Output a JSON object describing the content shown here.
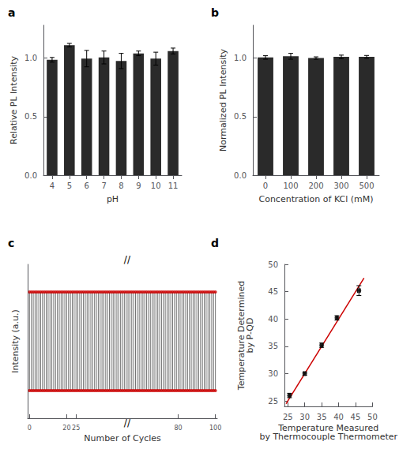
{
  "chart_data": [
    {
      "type": "bar",
      "title": "a",
      "categories": [
        "4",
        "5",
        "6",
        "7",
        "8",
        "9",
        "10",
        "11"
      ],
      "values": [
        0.985,
        1.11,
        0.995,
        1.005,
        0.975,
        1.04,
        0.995,
        1.06
      ],
      "errors": [
        0.02,
        0.015,
        0.07,
        0.055,
        0.065,
        0.02,
        0.055,
        0.025
      ],
      "color": "#2a2a2a",
      "xlabel": "pH",
      "ylabel": "Relative PL Intensity",
      "ylim": [
        0.0,
        1.28
      ],
      "yticks": [
        {
          "value": 0.0,
          "label": "0.0"
        },
        {
          "value": 0.5,
          "label": "0.5"
        },
        {
          "value": 1.0,
          "label": "1.0"
        }
      ],
      "grid": false
    },
    {
      "type": "bar",
      "title": "b",
      "categories": [
        "0",
        "100",
        "200",
        "300",
        "500"
      ],
      "values": [
        1.005,
        1.015,
        1.0,
        1.01,
        1.01
      ],
      "errors": [
        0.015,
        0.025,
        0.01,
        0.015,
        0.012
      ],
      "color": "#2a2a2a",
      "xlabel": "Concentration of KCl (mM)",
      "ylabel": "Normalized PL Intensity",
      "ylim": [
        0.0,
        1.28
      ],
      "yticks": [
        {
          "value": 0.0,
          "label": "0.0"
        },
        {
          "value": 0.5,
          "label": "0.5"
        },
        {
          "value": 1.0,
          "label": "1.0"
        }
      ],
      "grid": false
    },
    {
      "type": "cycles",
      "title": "c",
      "x": [
        0,
        1,
        2,
        3,
        4,
        5,
        6,
        7,
        8,
        9,
        10,
        11,
        12,
        13,
        14,
        15,
        16,
        17,
        18,
        19,
        20,
        21,
        22,
        23,
        24,
        25,
        26,
        27,
        28,
        29,
        30,
        31,
        32,
        33,
        34,
        35,
        36,
        37,
        38,
        39,
        40,
        41,
        42,
        43,
        44,
        45,
        46,
        47,
        48,
        49,
        50,
        51,
        52,
        53,
        54,
        55,
        56,
        57,
        58,
        59,
        60,
        61,
        62,
        63,
        64,
        65,
        66,
        67,
        68,
        69,
        70,
        71,
        72,
        73,
        74,
        75,
        76,
        77,
        78,
        79,
        80,
        81,
        82,
        83,
        84,
        85,
        86,
        87,
        88,
        89,
        90,
        91,
        92,
        93,
        94,
        95,
        96,
        97,
        98,
        99,
        100
      ],
      "series": [
        {
          "type": "vlines",
          "color": "#111111",
          "low": [
            0.18,
            0.18,
            0.18,
            0.18,
            0.18,
            0.18,
            0.18,
            0.18,
            0.18,
            0.18,
            0.18,
            0.18,
            0.18,
            0.18,
            0.18,
            0.18,
            0.18,
            0.18,
            0.18,
            0.18,
            0.18,
            0.18,
            0.18,
            0.18,
            0.18,
            0.18,
            0.18,
            0.18,
            0.18,
            0.18,
            0.18,
            0.18,
            0.18,
            0.18,
            0.18,
            0.18,
            0.18,
            0.18,
            0.18,
            0.18,
            0.18,
            0.18,
            0.18,
            0.18,
            0.18,
            0.18,
            0.18,
            0.18,
            0.18,
            0.18,
            0.18,
            0.18,
            0.18,
            0.18,
            0.18,
            0.18,
            0.18,
            0.18,
            0.18,
            0.18,
            0.18,
            0.18,
            0.18,
            0.18,
            0.18,
            0.18,
            0.18,
            0.18,
            0.18,
            0.18,
            0.18,
            0.18,
            0.18,
            0.18,
            0.18,
            0.18,
            0.18,
            0.18,
            0.18,
            0.18,
            0.18,
            0.18,
            0.18,
            0.18,
            0.18,
            0.18,
            0.18,
            0.18,
            0.18,
            0.18,
            0.18,
            0.18,
            0.18,
            0.18,
            0.18,
            0.18,
            0.18,
            0.18,
            0.18,
            0.18,
            0.18
          ],
          "high": [
            0.82,
            0.82,
            0.82,
            0.82,
            0.82,
            0.82,
            0.82,
            0.82,
            0.82,
            0.82,
            0.82,
            0.82,
            0.82,
            0.82,
            0.82,
            0.82,
            0.82,
            0.82,
            0.82,
            0.82,
            0.82,
            0.82,
            0.82,
            0.82,
            0.82,
            0.82,
            0.82,
            0.82,
            0.82,
            0.82,
            0.82,
            0.82,
            0.82,
            0.82,
            0.82,
            0.82,
            0.82,
            0.82,
            0.82,
            0.82,
            0.82,
            0.82,
            0.82,
            0.82,
            0.82,
            0.82,
            0.82,
            0.82,
            0.82,
            0.82,
            0.82,
            0.82,
            0.82,
            0.82,
            0.82,
            0.82,
            0.82,
            0.82,
            0.82,
            0.82,
            0.82,
            0.82,
            0.82,
            0.82,
            0.82,
            0.82,
            0.82,
            0.82,
            0.82,
            0.82,
            0.82,
            0.82,
            0.82,
            0.82,
            0.82,
            0.82,
            0.82,
            0.82,
            0.82,
            0.82,
            0.82,
            0.82,
            0.82,
            0.82,
            0.82,
            0.82,
            0.82,
            0.82,
            0.82,
            0.82,
            0.82,
            0.82,
            0.82,
            0.82,
            0.82,
            0.82,
            0.82,
            0.82,
            0.82,
            0.82,
            0.82
          ]
        },
        {
          "type": "scatter",
          "color": "#cc0000",
          "values": [
            0.82,
            0.82,
            0.82,
            0.82,
            0.82,
            0.82,
            0.82,
            0.82,
            0.82,
            0.82,
            0.82,
            0.82,
            0.82,
            0.82,
            0.82,
            0.82,
            0.82,
            0.82,
            0.82,
            0.82,
            0.82,
            0.82,
            0.82,
            0.82,
            0.82,
            0.82,
            0.82,
            0.82,
            0.82,
            0.82,
            0.82,
            0.82,
            0.82,
            0.82,
            0.82,
            0.82,
            0.82,
            0.82,
            0.82,
            0.82,
            0.82,
            0.82,
            0.82,
            0.82,
            0.82,
            0.82,
            0.82,
            0.82,
            0.82,
            0.82,
            0.82,
            0.82,
            0.82,
            0.82,
            0.82,
            0.82,
            0.82,
            0.82,
            0.82,
            0.82,
            0.82,
            0.82,
            0.82,
            0.82,
            0.82,
            0.82,
            0.82,
            0.82,
            0.82,
            0.82,
            0.82,
            0.82,
            0.82,
            0.82,
            0.82,
            0.82,
            0.82,
            0.82,
            0.82,
            0.82,
            0.82,
            0.82,
            0.82,
            0.82,
            0.82,
            0.82,
            0.82,
            0.82,
            0.82,
            0.82,
            0.82,
            0.82,
            0.82,
            0.82,
            0.82,
            0.82,
            0.82,
            0.82,
            0.82,
            0.82,
            0.82
          ]
        },
        {
          "type": "scatter",
          "color": "#cc0000",
          "values": [
            0.18,
            0.18,
            0.18,
            0.18,
            0.18,
            0.18,
            0.18,
            0.18,
            0.18,
            0.18,
            0.18,
            0.18,
            0.18,
            0.18,
            0.18,
            0.18,
            0.18,
            0.18,
            0.18,
            0.18,
            0.18,
            0.18,
            0.18,
            0.18,
            0.18,
            0.18,
            0.18,
            0.18,
            0.18,
            0.18,
            0.18,
            0.18,
            0.18,
            0.18,
            0.18,
            0.18,
            0.18,
            0.18,
            0.18,
            0.18,
            0.18,
            0.18,
            0.18,
            0.18,
            0.18,
            0.18,
            0.18,
            0.18,
            0.18,
            0.18,
            0.18,
            0.18,
            0.18,
            0.18,
            0.18,
            0.18,
            0.18,
            0.18,
            0.18,
            0.18,
            0.18,
            0.18,
            0.18,
            0.18,
            0.18,
            0.18,
            0.18,
            0.18,
            0.18,
            0.18,
            0.18,
            0.18,
            0.18,
            0.18,
            0.18,
            0.18,
            0.18,
            0.18,
            0.18,
            0.18,
            0.18,
            0.18,
            0.18,
            0.18,
            0.18,
            0.18,
            0.18,
            0.18,
            0.18,
            0.18,
            0.18,
            0.18,
            0.18,
            0.18,
            0.18,
            0.18,
            0.18,
            0.18,
            0.18,
            0.18,
            0.18
          ]
        }
      ],
      "xlabel": "Number of Cycles",
      "ylabel": "Intensity (a.u.)",
      "xlim": [
        -1,
        101
      ],
      "xticks": [
        0,
        20,
        25,
        80,
        100
      ],
      "ylim": [
        0,
        1
      ],
      "yticks": [],
      "tick_labels": "x",
      "annotations": [
        {
          "text": "//",
          "x": 52.5,
          "y": 1
        },
        {
          "text": "//",
          "x": 52.5,
          "y": 0
        }
      ],
      "grid": false
    },
    {
      "type": "scatter",
      "title": "d",
      "series": [
        {
          "type": "line",
          "color": "#cc0000",
          "x": [
            24.5,
            47.5
          ],
          "values": [
            24.5,
            47.5
          ]
        },
        {
          "type": "scatter",
          "color": "#111111",
          "x": [
            25.5,
            30.0,
            35.0,
            39.5,
            46.0
          ],
          "values": [
            26.0,
            30.0,
            35.2,
            40.2,
            45.2
          ],
          "errors_x": [
            0.3,
            0.3,
            0.3,
            0.3,
            0.4
          ],
          "errors_y": [
            0.4,
            0.3,
            0.4,
            0.4,
            0.9
          ]
        }
      ],
      "xlabel": "Temperature Measured\nby Thermocouple Thermometer",
      "ylabel": "Temperature Determined\nby P-QD",
      "xlim": [
        24,
        50
      ],
      "xticks": [
        25,
        30,
        35,
        40,
        45,
        50
      ],
      "ylim": [
        24,
        50
      ],
      "yticks": [
        25,
        30,
        35,
        40,
        45,
        50
      ],
      "grid": false
    }
  ]
}
